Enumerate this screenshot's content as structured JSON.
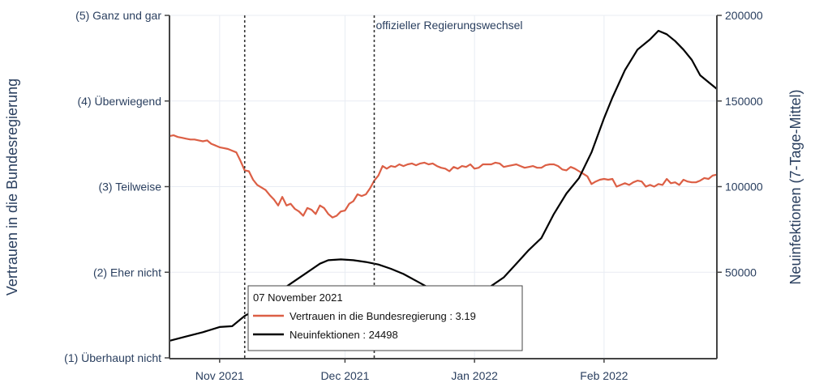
{
  "chart_data": {
    "type": "line",
    "x_unit": "date",
    "xlim": [
      "2021-10-20",
      "2022-02-28"
    ],
    "x_ticks": [
      {
        "value": "2021-11-01",
        "label": "Nov 2021"
      },
      {
        "value": "2021-12-01",
        "label": "Dec 2021"
      },
      {
        "value": "2022-01-01",
        "label": "Jan 2022"
      },
      {
        "value": "2022-02-01",
        "label": "Feb 2022"
      }
    ],
    "y_left": {
      "label": "Vertrauen in die Bundesregierung",
      "range": [
        1,
        5
      ],
      "ticks": [
        {
          "value": 1,
          "label": "(1) Überhaupt nicht"
        },
        {
          "value": 2,
          "label": "(2) Eher nicht"
        },
        {
          "value": 3,
          "label": "(3) Teilweise"
        },
        {
          "value": 4,
          "label": "(4) Überwiegend"
        },
        {
          "value": 5,
          "label": "(5) Ganz und gar"
        }
      ]
    },
    "y_right": {
      "label": "Neuinfektionen (7-Tage-Mittel)",
      "range": [
        0,
        200000
      ],
      "ticks": [
        {
          "value": 50000,
          "label": "50000"
        },
        {
          "value": 100000,
          "label": "100000"
        },
        {
          "value": 150000,
          "label": "150000"
        },
        {
          "value": 200000,
          "label": "200000"
        }
      ]
    },
    "grid": true,
    "series": [
      {
        "name": "Vertrauen in die Bundesregierung",
        "axis": "left",
        "color": "#dc5f45",
        "points": [
          [
            "2021-10-20",
            3.59
          ],
          [
            "2021-10-21",
            3.6
          ],
          [
            "2021-10-22",
            3.58
          ],
          [
            "2021-10-23",
            3.57
          ],
          [
            "2021-10-24",
            3.56
          ],
          [
            "2021-10-25",
            3.55
          ],
          [
            "2021-10-26",
            3.55
          ],
          [
            "2021-10-27",
            3.54
          ],
          [
            "2021-10-28",
            3.53
          ],
          [
            "2021-10-29",
            3.54
          ],
          [
            "2021-10-30",
            3.5
          ],
          [
            "2021-10-31",
            3.48
          ],
          [
            "2021-11-01",
            3.46
          ],
          [
            "2021-11-02",
            3.45
          ],
          [
            "2021-11-03",
            3.44
          ],
          [
            "2021-11-04",
            3.42
          ],
          [
            "2021-11-05",
            3.4
          ],
          [
            "2021-11-06",
            3.3
          ],
          [
            "2021-11-07",
            3.19
          ],
          [
            "2021-11-08",
            3.18
          ],
          [
            "2021-11-09",
            3.08
          ],
          [
            "2021-11-10",
            3.02
          ],
          [
            "2021-11-11",
            2.99
          ],
          [
            "2021-11-12",
            2.96
          ],
          [
            "2021-11-13",
            2.9
          ],
          [
            "2021-11-14",
            2.85
          ],
          [
            "2021-11-15",
            2.78
          ],
          [
            "2021-11-16",
            2.88
          ],
          [
            "2021-11-17",
            2.78
          ],
          [
            "2021-11-18",
            2.8
          ],
          [
            "2021-11-19",
            2.74
          ],
          [
            "2021-11-20",
            2.71
          ],
          [
            "2021-11-21",
            2.66
          ],
          [
            "2021-11-22",
            2.75
          ],
          [
            "2021-11-23",
            2.73
          ],
          [
            "2021-11-24",
            2.68
          ],
          [
            "2021-11-25",
            2.78
          ],
          [
            "2021-11-26",
            2.75
          ],
          [
            "2021-11-27",
            2.68
          ],
          [
            "2021-11-28",
            2.64
          ],
          [
            "2021-11-29",
            2.66
          ],
          [
            "2021-11-30",
            2.71
          ],
          [
            "2021-12-01",
            2.72
          ],
          [
            "2021-12-02",
            2.8
          ],
          [
            "2021-12-03",
            2.83
          ],
          [
            "2021-12-04",
            2.91
          ],
          [
            "2021-12-05",
            2.89
          ],
          [
            "2021-12-06",
            2.91
          ],
          [
            "2021-12-07",
            2.98
          ],
          [
            "2021-12-08",
            3.07
          ],
          [
            "2021-12-09",
            3.13
          ],
          [
            "2021-12-10",
            3.24
          ],
          [
            "2021-12-11",
            3.21
          ],
          [
            "2021-12-12",
            3.24
          ],
          [
            "2021-12-13",
            3.23
          ],
          [
            "2021-12-14",
            3.26
          ],
          [
            "2021-12-15",
            3.24
          ],
          [
            "2021-12-16",
            3.26
          ],
          [
            "2021-12-17",
            3.27
          ],
          [
            "2021-12-18",
            3.25
          ],
          [
            "2021-12-19",
            3.27
          ],
          [
            "2021-12-20",
            3.28
          ],
          [
            "2021-12-21",
            3.26
          ],
          [
            "2021-12-22",
            3.27
          ],
          [
            "2021-12-23",
            3.24
          ],
          [
            "2021-12-24",
            3.22
          ],
          [
            "2021-12-25",
            3.21
          ],
          [
            "2021-12-26",
            3.18
          ],
          [
            "2021-12-27",
            3.23
          ],
          [
            "2021-12-28",
            3.21
          ],
          [
            "2021-12-29",
            3.24
          ],
          [
            "2021-12-30",
            3.23
          ],
          [
            "2021-12-31",
            3.26
          ],
          [
            "2022-01-01",
            3.21
          ],
          [
            "2022-01-02",
            3.22
          ],
          [
            "2022-01-03",
            3.26
          ],
          [
            "2022-01-04",
            3.26
          ],
          [
            "2022-01-05",
            3.26
          ],
          [
            "2022-01-06",
            3.28
          ],
          [
            "2022-01-07",
            3.27
          ],
          [
            "2022-01-08",
            3.23
          ],
          [
            "2022-01-09",
            3.24
          ],
          [
            "2022-01-10",
            3.25
          ],
          [
            "2022-01-11",
            3.26
          ],
          [
            "2022-01-12",
            3.24
          ],
          [
            "2022-01-13",
            3.22
          ],
          [
            "2022-01-14",
            3.23
          ],
          [
            "2022-01-15",
            3.24
          ],
          [
            "2022-01-16",
            3.22
          ],
          [
            "2022-01-17",
            3.22
          ],
          [
            "2022-01-18",
            3.25
          ],
          [
            "2022-01-19",
            3.26
          ],
          [
            "2022-01-20",
            3.26
          ],
          [
            "2022-01-21",
            3.24
          ],
          [
            "2022-01-22",
            3.2
          ],
          [
            "2022-01-23",
            3.19
          ],
          [
            "2022-01-24",
            3.23
          ],
          [
            "2022-01-25",
            3.21
          ],
          [
            "2022-01-26",
            3.18
          ],
          [
            "2022-01-27",
            3.15
          ],
          [
            "2022-01-28",
            3.12
          ],
          [
            "2022-01-29",
            3.03
          ],
          [
            "2022-01-30",
            3.06
          ],
          [
            "2022-01-31",
            3.08
          ],
          [
            "2022-02-01",
            3.09
          ],
          [
            "2022-02-02",
            3.08
          ],
          [
            "2022-02-03",
            3.09
          ],
          [
            "2022-02-04",
            3.0
          ],
          [
            "2022-02-05",
            3.02
          ],
          [
            "2022-02-06",
            3.04
          ],
          [
            "2022-02-07",
            3.02
          ],
          [
            "2022-02-08",
            3.05
          ],
          [
            "2022-02-09",
            3.07
          ],
          [
            "2022-02-10",
            3.06
          ],
          [
            "2022-02-11",
            3.0
          ],
          [
            "2022-02-12",
            3.02
          ],
          [
            "2022-02-13",
            3.0
          ],
          [
            "2022-02-14",
            3.03
          ],
          [
            "2022-02-15",
            3.02
          ],
          [
            "2022-02-16",
            3.09
          ],
          [
            "2022-02-17",
            3.04
          ],
          [
            "2022-02-18",
            3.05
          ],
          [
            "2022-02-19",
            3.02
          ],
          [
            "2022-02-20",
            3.08
          ],
          [
            "2022-02-21",
            3.06
          ],
          [
            "2022-02-22",
            3.05
          ],
          [
            "2022-02-23",
            3.05
          ],
          [
            "2022-02-24",
            3.07
          ],
          [
            "2022-02-25",
            3.1
          ],
          [
            "2022-02-26",
            3.09
          ],
          [
            "2022-02-27",
            3.13
          ],
          [
            "2022-02-28",
            3.14
          ]
        ]
      },
      {
        "name": "Neuinfektionen",
        "axis": "right",
        "color": "#000000",
        "points": [
          [
            "2021-10-20",
            10000
          ],
          [
            "2021-10-24",
            12500
          ],
          [
            "2021-10-28",
            15000
          ],
          [
            "2021-11-01",
            18000
          ],
          [
            "2021-11-04",
            18500
          ],
          [
            "2021-11-07",
            24498
          ],
          [
            "2021-11-10",
            28500
          ],
          [
            "2021-11-13",
            33000
          ],
          [
            "2021-11-16",
            40000
          ],
          [
            "2021-11-19",
            45000
          ],
          [
            "2021-11-22",
            50000
          ],
          [
            "2021-11-25",
            55000
          ],
          [
            "2021-11-27",
            57000
          ],
          [
            "2021-11-30",
            57500
          ],
          [
            "2021-12-03",
            57000
          ],
          [
            "2021-12-06",
            56000
          ],
          [
            "2021-12-09",
            54500
          ],
          [
            "2021-12-12",
            52000
          ],
          [
            "2021-12-15",
            49000
          ],
          [
            "2021-12-18",
            45000
          ],
          [
            "2021-12-21",
            41000
          ],
          [
            "2021-12-24",
            37000
          ],
          [
            "2021-12-27",
            34000
          ],
          [
            "2021-12-30",
            33000
          ],
          [
            "2022-01-02",
            36000
          ],
          [
            "2022-01-05",
            42000
          ],
          [
            "2022-01-08",
            47000
          ],
          [
            "2022-01-11",
            55000
          ],
          [
            "2022-01-14",
            63000
          ],
          [
            "2022-01-17",
            70000
          ],
          [
            "2022-01-20",
            84000
          ],
          [
            "2022-01-23",
            96000
          ],
          [
            "2022-01-26",
            105000
          ],
          [
            "2022-01-29",
            120000
          ],
          [
            "2022-02-01",
            140000
          ],
          [
            "2022-02-03",
            152000
          ],
          [
            "2022-02-06",
            168000
          ],
          [
            "2022-02-09",
            180000
          ],
          [
            "2022-02-12",
            186000
          ],
          [
            "2022-02-14",
            191000
          ],
          [
            "2022-02-16",
            189000
          ],
          [
            "2022-02-18",
            185000
          ],
          [
            "2022-02-20",
            180000
          ],
          [
            "2022-02-22",
            174000
          ],
          [
            "2022-02-24",
            165000
          ],
          [
            "2022-02-26",
            161000
          ],
          [
            "2022-02-28",
            157000
          ]
        ]
      }
    ],
    "vlines": [
      {
        "x": "2021-11-07",
        "label": ""
      },
      {
        "x": "2021-12-08",
        "label": "offizieller Regierungswechsel"
      }
    ],
    "hover": {
      "title": "07 November 2021",
      "rows": [
        {
          "series": "Vertrauen in die Bundesregierung",
          "value": "3.19",
          "color": "#dc5f45"
        },
        {
          "series": "Neuinfektionen",
          "value": "24498",
          "color": "#000000"
        }
      ]
    }
  }
}
